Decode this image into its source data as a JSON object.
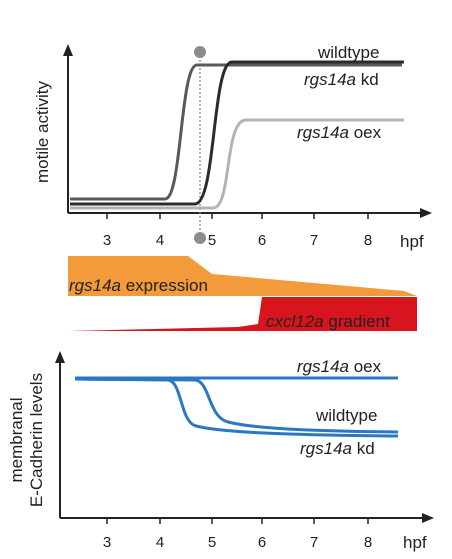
{
  "top_panel": {
    "y_axis_label": "motile activity",
    "x_axis_unit": "hpf",
    "x_ticks": [
      "3",
      "4",
      "5",
      "6",
      "7",
      "8"
    ],
    "colors": {
      "wildtype": "#595959",
      "kd": "#2b2b2b",
      "oex": "#b3b3b3",
      "marker": "#8c8c8c"
    },
    "legend": {
      "wildtype": "wildtype",
      "kd": {
        "gene": "rgs14a",
        "suffix": " kd"
      },
      "oex": {
        "gene": "rgs14a",
        "suffix": " oex"
      }
    }
  },
  "middle_panel": {
    "expression": {
      "gene": "rgs14a",
      "suffix": " expression",
      "color": "#f39a3a"
    },
    "gradient": {
      "gene": "cxcl12a",
      "suffix": " gradient",
      "color": "#d8141e"
    }
  },
  "bottom_panel": {
    "y_axis_label_line1": "membranal",
    "y_axis_label_line2": "E-Cadherin levels",
    "x_axis_unit": "hpf",
    "x_ticks": [
      "3",
      "4",
      "5",
      "6",
      "7",
      "8"
    ],
    "line_color": "#2a77c4",
    "legend": {
      "oex": {
        "gene": "rgs14a",
        "suffix": " oex"
      },
      "wildtype": "wildtype",
      "kd": {
        "gene": "rgs14a",
        "suffix": " kd"
      }
    }
  }
}
